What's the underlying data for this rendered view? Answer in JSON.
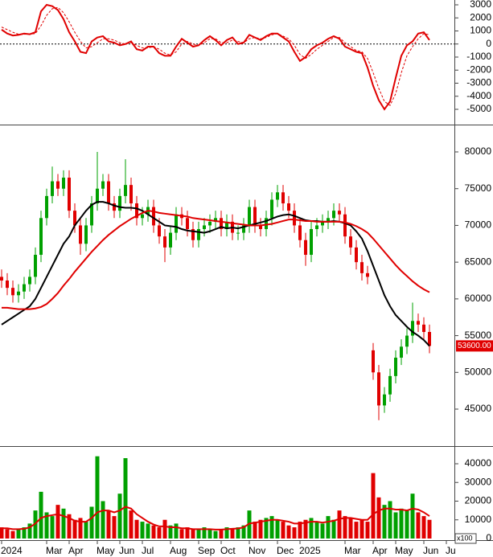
{
  "chart_data": [
    {
      "type": "line",
      "ylim": [
        -6170,
        3370
      ],
      "yticks": [
        -5000,
        -4000,
        -3000,
        -2000,
        -1000,
        0,
        1000,
        2000,
        3000
      ],
      "zero_line": true,
      "series": [
        {
          "color": "#e00000",
          "values": [
            1100,
            800,
            650,
            700,
            800,
            750,
            900,
            2500,
            3000,
            2900,
            2600,
            1900,
            900,
            200,
            -600,
            -700,
            200,
            500,
            600,
            200,
            100,
            -100,
            0,
            200,
            -400,
            -500,
            -200,
            -200,
            -700,
            -900,
            -900,
            -200,
            400,
            100,
            -200,
            -100,
            300,
            600,
            300,
            -100,
            300,
            500,
            0,
            100,
            700,
            500,
            300,
            600,
            800,
            800,
            500,
            200,
            -600,
            -1300,
            -1000,
            -400,
            -100,
            100,
            400,
            600,
            400,
            -200,
            -400,
            -600,
            -700,
            -1800,
            -3200,
            -4300,
            -5000,
            -4400,
            -2600,
            -900,
            -100,
            200,
            800,
            900,
            300,
            null,
            null,
            null
          ]
        },
        {
          "color": "#e00000",
          "dash": true,
          "values": [
            1300,
            1100,
            900,
            750,
            750,
            760,
            800,
            1400,
            2200,
            2700,
            2800,
            2400,
            1700,
            900,
            200,
            -300,
            -200,
            100,
            400,
            400,
            300,
            100,
            0,
            100,
            -100,
            -300,
            -300,
            -200,
            -400,
            -700,
            -850,
            -600,
            0,
            200,
            0,
            -100,
            100,
            400,
            400,
            100,
            100,
            300,
            200,
            100,
            400,
            500,
            400,
            500,
            700,
            800,
            600,
            400,
            -100,
            -800,
            -1100,
            -800,
            -400,
            -100,
            200,
            500,
            500,
            100,
            -200,
            -500,
            -600,
            -1100,
            -2200,
            -3400,
            -4400,
            -4700,
            -3800,
            -2200,
            -900,
            -200,
            400,
            800,
            700,
            null,
            null,
            null
          ]
        }
      ]
    },
    {
      "type": "candlestick",
      "ylim": [
        39970,
        83720
      ],
      "yticks": [
        45000,
        50000,
        55000,
        60000,
        65000,
        70000,
        75000,
        80000
      ],
      "up_color": "#00a000",
      "down_color": "#e00000",
      "open": [
        63000,
        62500,
        61500,
        60500,
        61000,
        62000,
        63000,
        66000,
        71000,
        74000,
        76000,
        75000,
        76500,
        72000,
        70000,
        67500,
        70000,
        73000,
        75000,
        76000,
        73000,
        72000,
        74000,
        75500,
        73000,
        71000,
        71500,
        72500,
        70000,
        68500,
        67000,
        69000,
        71500,
        71000,
        69500,
        68000,
        69500,
        70000,
        70500,
        71000,
        69500,
        70500,
        69000,
        69000,
        70000,
        72500,
        70000,
        69500,
        71000,
        73500,
        74500,
        73000,
        72000,
        70000,
        68000,
        66000,
        69500,
        70000,
        70500,
        71000,
        72000,
        71500,
        68500,
        67000,
        65000,
        63500,
        53000,
        50000,
        45500,
        47000,
        49500,
        52000,
        53500,
        55000,
        57000,
        56500,
        55500,
        null,
        null,
        null
      ],
      "high": [
        64000,
        63500,
        62500,
        62000,
        63000,
        64000,
        67000,
        72000,
        75000,
        78000,
        77000,
        77500,
        77500,
        73000,
        71000,
        71000,
        74000,
        80000,
        77000,
        77000,
        74000,
        75000,
        79000,
        76500,
        74000,
        72500,
        73500,
        73500,
        71000,
        69500,
        70000,
        72500,
        72500,
        72000,
        70500,
        70500,
        71000,
        71500,
        72000,
        72000,
        71500,
        71500,
        70000,
        71000,
        73500,
        73500,
        71000,
        72000,
        74500,
        75500,
        75500,
        74000,
        73000,
        71000,
        69000,
        70500,
        71000,
        71500,
        72000,
        73000,
        73000,
        72500,
        69500,
        68000,
        66000,
        64500,
        54000,
        51000,
        48000,
        50500,
        53000,
        54500,
        56000,
        59500,
        58000,
        57500,
        56500,
        null,
        null,
        null
      ],
      "low": [
        61500,
        60500,
        59500,
        59500,
        60000,
        61000,
        62000,
        65000,
        70000,
        73000,
        74000,
        74000,
        71000,
        69000,
        66000,
        66500,
        69000,
        72000,
        74000,
        72000,
        71000,
        71000,
        73000,
        72000,
        70000,
        70000,
        70500,
        69000,
        67500,
        65000,
        66000,
        68000,
        70000,
        68500,
        67000,
        67000,
        68500,
        69000,
        69500,
        68500,
        68500,
        68000,
        68000,
        68000,
        69000,
        69000,
        68500,
        68500,
        70000,
        72500,
        72000,
        71000,
        69000,
        67000,
        64500,
        65000,
        68500,
        69000,
        69500,
        70000,
        70500,
        67500,
        66000,
        64000,
        62500,
        62000,
        49000,
        43500,
        44500,
        46000,
        48500,
        51000,
        52500,
        54000,
        55500,
        54500,
        52600,
        null,
        null,
        null
      ],
      "close": [
        62500,
        61500,
        60500,
        61000,
        62000,
        63000,
        66000,
        71000,
        74000,
        76000,
        75000,
        76500,
        72000,
        70000,
        67500,
        70000,
        73000,
        75000,
        76000,
        73000,
        72000,
        74000,
        75500,
        73000,
        71000,
        71500,
        72500,
        70000,
        68500,
        67000,
        69000,
        71500,
        71000,
        69500,
        68000,
        69500,
        70000,
        70500,
        71000,
        69500,
        70500,
        69000,
        69000,
        70000,
        72500,
        70000,
        69500,
        71000,
        73500,
        74500,
        73000,
        72000,
        70000,
        68000,
        66000,
        69500,
        70000,
        70500,
        71000,
        72000,
        71500,
        68500,
        67000,
        65000,
        63500,
        63000,
        50000,
        45500,
        47000,
        49500,
        52000,
        53500,
        55000,
        57000,
        56500,
        55500,
        53600,
        null,
        null,
        null
      ],
      "series": [
        {
          "color": "#000000",
          "values": [
            56500,
            57000,
            57500,
            58000,
            58500,
            59000,
            60000,
            61500,
            63000,
            64500,
            66000,
            67500,
            68500,
            70000,
            71000,
            72000,
            72800,
            73200,
            73200,
            73000,
            72700,
            72500,
            72400,
            72400,
            72300,
            72000,
            71500,
            71000,
            70500,
            70000,
            69900,
            69800,
            69500,
            69300,
            69200,
            69100,
            69000,
            69200,
            69500,
            69800,
            69600,
            69700,
            69600,
            69800,
            70000,
            70200,
            70400,
            70600,
            70900,
            71200,
            71400,
            71500,
            71300,
            71000,
            70700,
            70600,
            70600,
            70500,
            70500,
            70600,
            70500,
            70300,
            70000,
            69200,
            68200,
            66500,
            64500,
            62500,
            60500,
            59000,
            57800,
            57000,
            56200,
            55500,
            55000,
            54400,
            53600,
            null,
            null,
            null
          ]
        },
        {
          "color": "#e00000",
          "values": [
            58800,
            58800,
            58700,
            58600,
            58600,
            58600,
            58700,
            58900,
            59300,
            60000,
            60800,
            61800,
            62700,
            63700,
            64600,
            65500,
            66400,
            67200,
            68000,
            68700,
            69300,
            69900,
            70400,
            70900,
            71300,
            71700,
            72000,
            71900,
            71700,
            71600,
            71500,
            71400,
            71300,
            71200,
            71000,
            70900,
            70800,
            70700,
            70600,
            70500,
            70400,
            70300,
            70200,
            70100,
            70000,
            70000,
            70000,
            70100,
            70200,
            70400,
            70600,
            70800,
            70800,
            70700,
            70600,
            70600,
            70500,
            70500,
            70500,
            70500,
            70500,
            70400,
            70200,
            69900,
            69500,
            69000,
            68200,
            67300,
            66400,
            65500,
            64600,
            63800,
            63100,
            62400,
            61800,
            61300,
            60900,
            null,
            null,
            null
          ]
        }
      ],
      "last_price": {
        "value": 53600,
        "label": "53600.00"
      }
    },
    {
      "type": "bar",
      "ylim": [
        -860,
        49460
      ],
      "yticks": [
        0,
        10000,
        20000,
        30000,
        40000
      ],
      "unit_label": "x100",
      "categories": [
        "2024",
        null,
        null,
        null,
        null,
        null,
        null,
        null,
        "Mar",
        null,
        null,
        null,
        "Apr",
        null,
        null,
        null,
        null,
        "May",
        null,
        null,
        null,
        "Jun",
        null,
        null,
        null,
        "Jul",
        null,
        null,
        null,
        null,
        "Aug",
        null,
        null,
        null,
        null,
        "Sep",
        null,
        null,
        null,
        "Oct",
        null,
        null,
        null,
        null,
        "Nov",
        null,
        null,
        null,
        null,
        "Dec",
        null,
        null,
        null,
        "2025",
        null,
        null,
        null,
        null,
        null,
        null,
        null,
        "Mar",
        null,
        null,
        null,
        null,
        "Apr",
        null,
        null,
        null,
        "May",
        null,
        null,
        null,
        null,
        "Jun",
        null,
        null,
        null,
        "Ju"
      ],
      "values": [
        6000,
        5000,
        4000,
        5000,
        6000,
        8000,
        15000,
        25000,
        14000,
        12000,
        18000,
        16000,
        13000,
        10000,
        11000,
        9000,
        17000,
        44000,
        20000,
        15000,
        12000,
        24000,
        43000,
        15000,
        10000,
        9000,
        8000,
        7000,
        6000,
        10000,
        7000,
        8000,
        5000,
        6000,
        5000,
        5000,
        6000,
        5000,
        4000,
        5000,
        6000,
        5000,
        6000,
        7000,
        15000,
        9000,
        10000,
        11000,
        12000,
        10000,
        9000,
        7000,
        6000,
        9000,
        10000,
        11000,
        9000,
        8000,
        12000,
        10000,
        15000,
        12000,
        11000,
        9000,
        10000,
        9000,
        35000,
        22000,
        18000,
        20000,
        14000,
        16000,
        15000,
        24000,
        14000,
        12000,
        10000,
        null,
        null,
        null
      ],
      "series": [
        {
          "color": "#e00000",
          "values": [
            5500,
            5500,
            5000,
            5000,
            5200,
            6000,
            8000,
            11000,
            12000,
            12500,
            13000,
            12000,
            11000,
            9500,
            9000,
            9000,
            11000,
            14000,
            15000,
            15000,
            14000,
            15000,
            17000,
            16000,
            13000,
            11000,
            9000,
            7500,
            6500,
            6500,
            6000,
            6000,
            5500,
            5500,
            5000,
            5000,
            5000,
            5000,
            4800,
            4800,
            5000,
            5200,
            5400,
            6000,
            8000,
            8500,
            9000,
            9500,
            10000,
            10000,
            9500,
            9000,
            8000,
            8000,
            8500,
            9000,
            9000,
            8500,
            9000,
            9500,
            10500,
            11000,
            11000,
            10500,
            10000,
            10000,
            13000,
            15000,
            16000,
            16000,
            15500,
            15500,
            15000,
            16000,
            15500,
            14000,
            12000,
            null,
            null,
            null
          ]
        }
      ]
    }
  ]
}
